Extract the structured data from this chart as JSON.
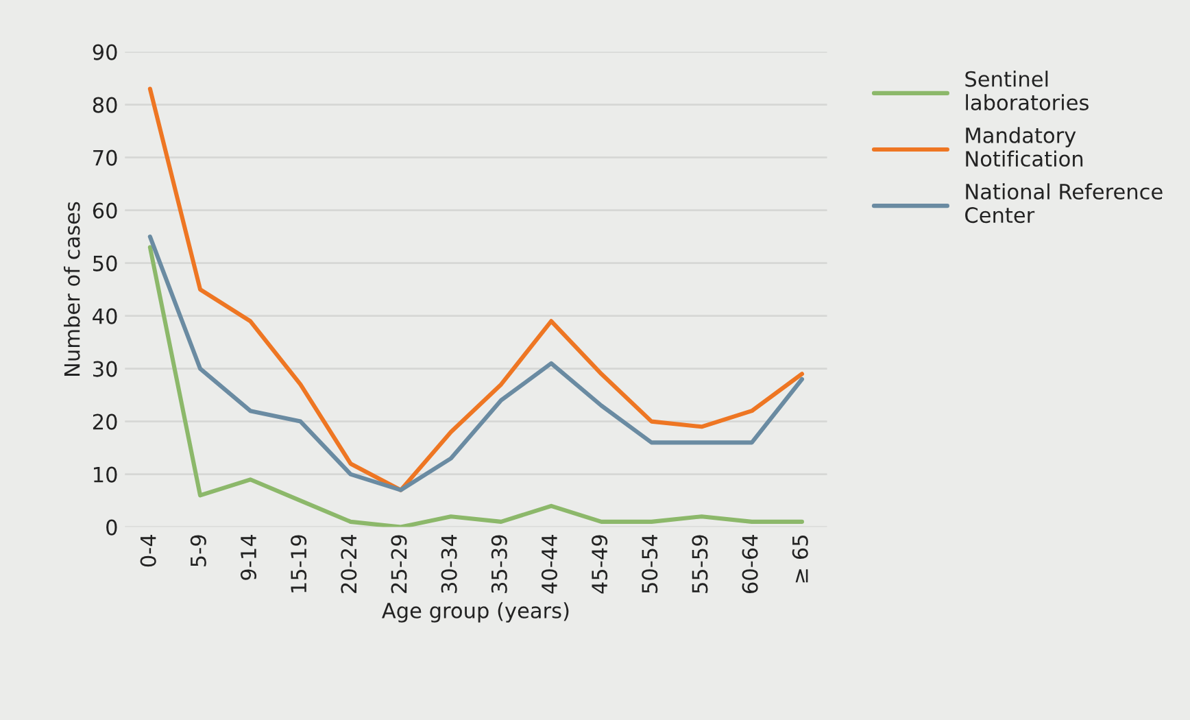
{
  "chart_data": {
    "type": "line",
    "xlabel": "Age group (years)",
    "ylabel": "Number of cases",
    "categories": [
      "0-4",
      "5-9",
      "9-14",
      "15-19",
      "20-24",
      "25-29",
      "30-34",
      "35-39",
      "40-44",
      "45-49",
      "50-54",
      "55-59",
      "60-64",
      "≥ 65"
    ],
    "series": [
      {
        "name": "Sentinel laboratories",
        "color": "#8cb86a",
        "values": [
          53,
          6,
          9,
          5,
          1,
          0,
          2,
          1,
          4,
          1,
          1,
          2,
          1,
          1
        ]
      },
      {
        "name": "Mandatory Notification",
        "color": "#ee7623",
        "values": [
          83,
          45,
          39,
          27,
          12,
          7,
          18,
          27,
          39,
          29,
          20,
          19,
          22,
          29
        ]
      },
      {
        "name": "National Reference Center",
        "color": "#6a8ba2",
        "values": [
          55,
          30,
          22,
          20,
          10,
          7,
          13,
          24,
          31,
          23,
          16,
          16,
          16,
          28
        ]
      }
    ],
    "ylim": [
      0,
      90
    ],
    "yticks": [
      0,
      10,
      20,
      30,
      40,
      50,
      60,
      70,
      80,
      90
    ],
    "grid": "y",
    "legend": "right",
    "marker": "none",
    "line_style": "solid"
  }
}
